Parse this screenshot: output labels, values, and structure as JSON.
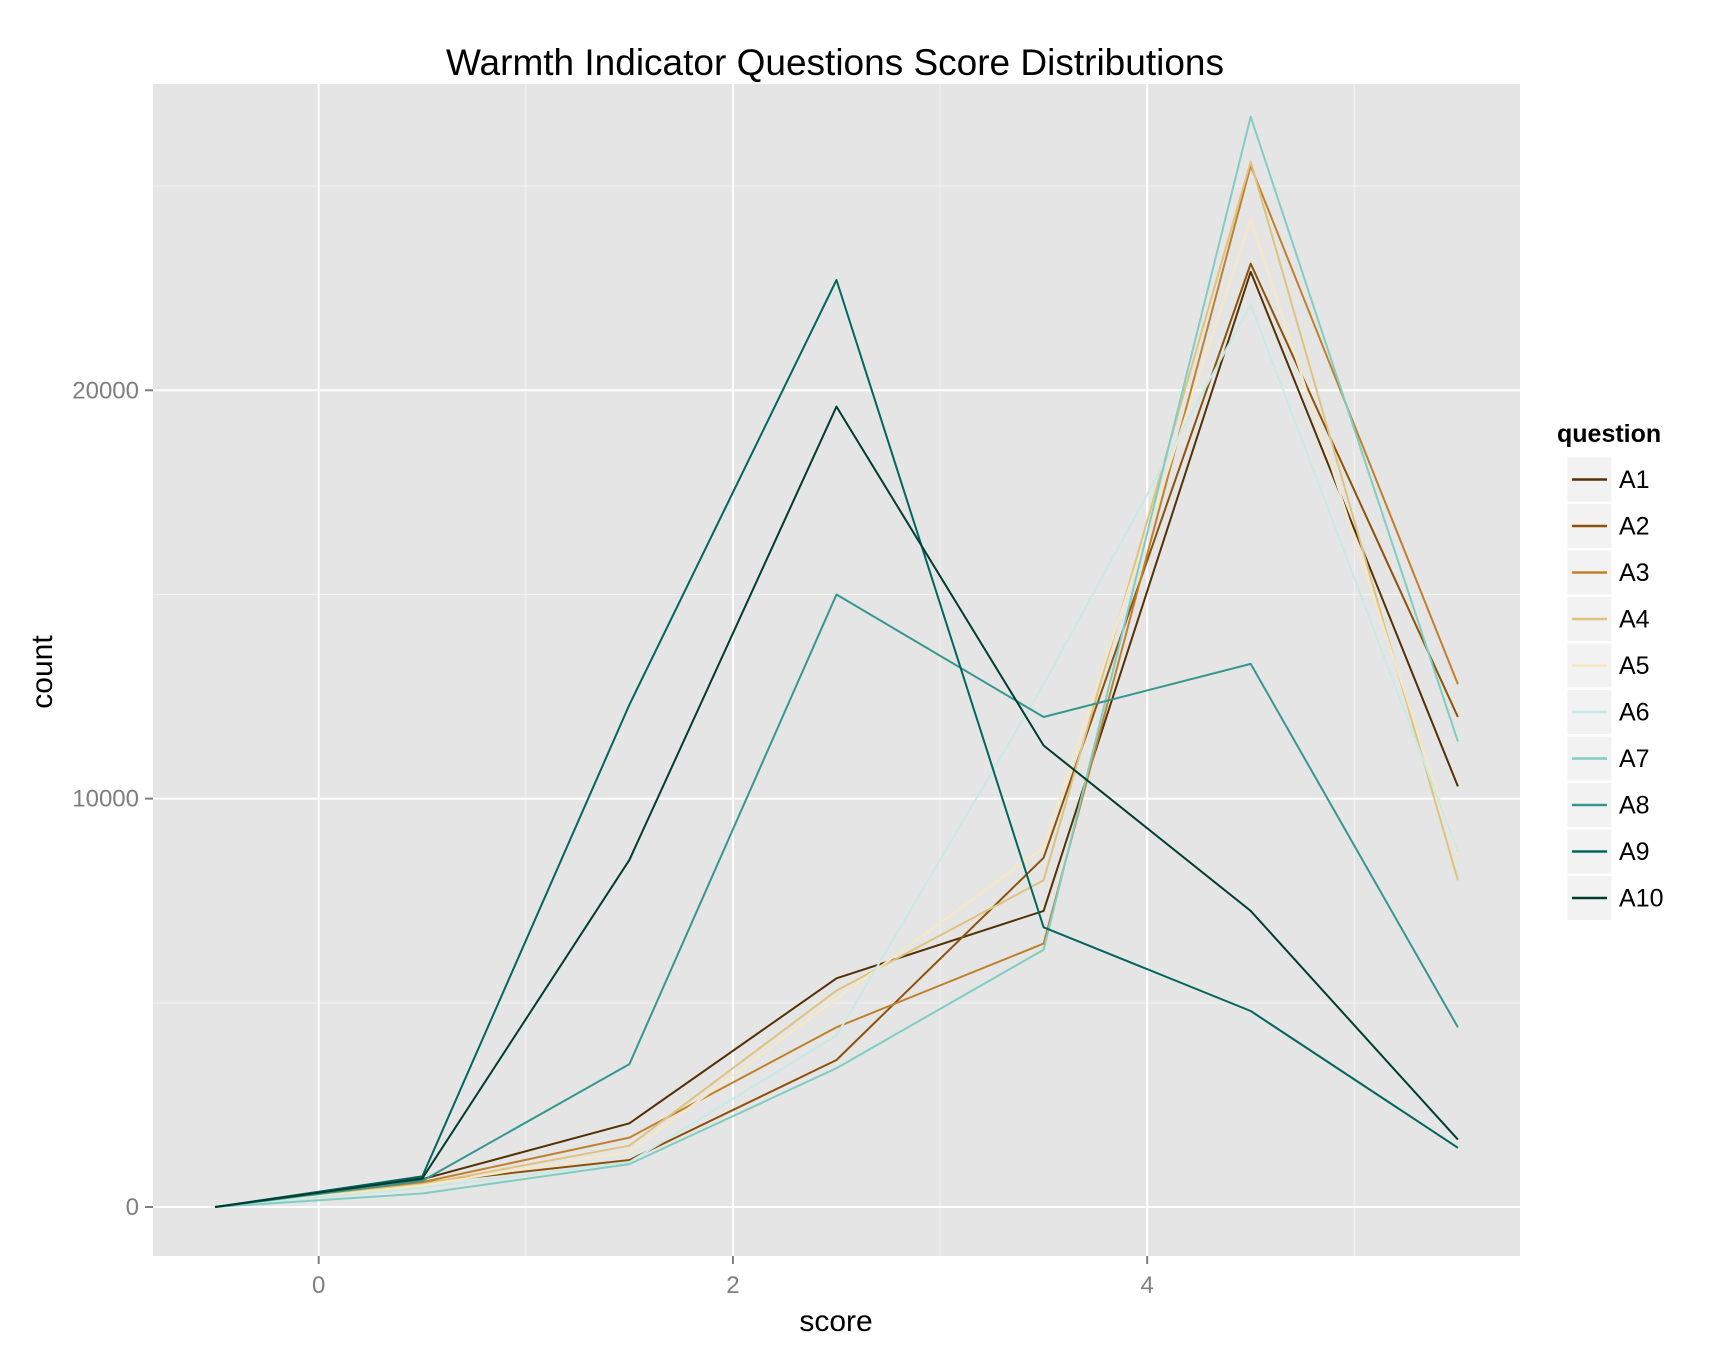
{
  "chart_data": {
    "type": "line",
    "title": "Warmth Indicator Questions Score Distributions",
    "xlabel": "score",
    "ylabel": "count",
    "xlim": [
      -0.8,
      5.8
    ],
    "ylim": [
      -1200,
      27500
    ],
    "x_ticks": [
      0,
      2,
      4
    ],
    "y_ticks": [
      0,
      10000,
      20000
    ],
    "x_minor_ticks": [
      1,
      3,
      5
    ],
    "y_minor_ticks": [
      5000,
      15000,
      25000
    ],
    "grid": true,
    "panel_background": "#e5e5e5",
    "legend": {
      "title": "question",
      "position": "right"
    },
    "x": [
      -0.5,
      0.5,
      1.5,
      2.5,
      3.5,
      4.5,
      5.5
    ],
    "series": [
      {
        "name": "A1",
        "color": "#543005",
        "values": [
          0,
          680,
          2050,
          5600,
          7250,
          22900,
          10300
        ]
      },
      {
        "name": "A2",
        "color": "#8c510a",
        "values": [
          0,
          590,
          1150,
          3600,
          8550,
          23100,
          12000
        ]
      },
      {
        "name": "A3",
        "color": "#bf812d",
        "values": [
          0,
          610,
          1700,
          4400,
          6450,
          25500,
          12800
        ]
      },
      {
        "name": "A4",
        "color": "#dfc27d",
        "values": [
          0,
          560,
          1500,
          5300,
          8000,
          25600,
          8000
        ]
      },
      {
        "name": "A5",
        "color": "#f6e8c3",
        "values": [
          0,
          530,
          1350,
          5100,
          8800,
          24200,
          8600
        ]
      },
      {
        "name": "A6",
        "color": "#c7eae5",
        "values": [
          0,
          470,
          1100,
          4200,
          12800,
          22100,
          8700
        ]
      },
      {
        "name": "A7",
        "color": "#80cdc1",
        "values": [
          0,
          330,
          1050,
          3400,
          6300,
          26700,
          11400
        ]
      },
      {
        "name": "A8",
        "color": "#35978f",
        "values": [
          0,
          640,
          3500,
          15000,
          12000,
          13300,
          4400
        ]
      },
      {
        "name": "A9",
        "color": "#01665e",
        "values": [
          0,
          750,
          12300,
          22700,
          6850,
          4800,
          1450
        ]
      },
      {
        "name": "A10",
        "color": "#003c30",
        "values": [
          0,
          700,
          8500,
          19600,
          11300,
          7250,
          1650
        ]
      }
    ]
  }
}
